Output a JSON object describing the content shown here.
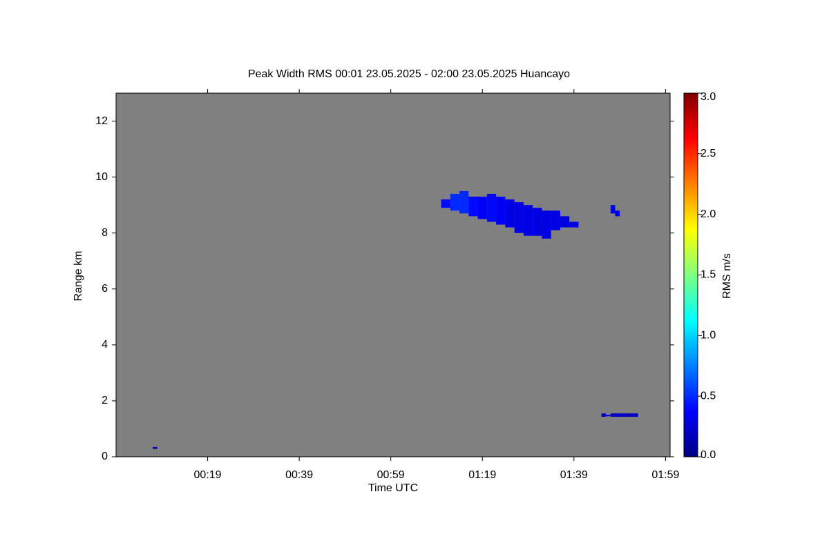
{
  "chart_data": {
    "type": "heatmap",
    "title": "Peak Width RMS   00:01 23.05.2025 - 02:00 23.05.2025 Huancayo",
    "xlabel": "Time UTC",
    "ylabel": "Range km",
    "colorbar_label": "RMS m/s",
    "xlim": [
      -1,
      120
    ],
    "xticks": [
      {
        "value": 19,
        "label": "00:19"
      },
      {
        "value": 39,
        "label": "00:39"
      },
      {
        "value": 59,
        "label": "00:59"
      },
      {
        "value": 79,
        "label": "01:19"
      },
      {
        "value": 99,
        "label": "01:39"
      },
      {
        "value": 119,
        "label": "01:59"
      }
    ],
    "ylim": [
      0,
      13
    ],
    "yticks": [
      0,
      2,
      4,
      6,
      8,
      10,
      12
    ],
    "clim": [
      0,
      3
    ],
    "cticks": [
      {
        "value": 0,
        "label": "0.0"
      },
      {
        "value": 0.5,
        "label": "0.5"
      },
      {
        "value": 1,
        "label": "1.0"
      },
      {
        "value": 1.5,
        "label": "1.5"
      },
      {
        "value": 2,
        "label": "2.0"
      },
      {
        "value": 2.5,
        "label": "2.5"
      },
      {
        "value": 3,
        "label": "3.0"
      }
    ],
    "background": "#808080",
    "echoes": [
      {
        "x": [
          70,
          72,
          74,
          76,
          78,
          80,
          82,
          84,
          86,
          88,
          90,
          92,
          94,
          96,
          98
        ],
        "bottom": [
          8.9,
          8.8,
          8.7,
          8.6,
          8.5,
          8.4,
          8.3,
          8.2,
          8.0,
          7.9,
          7.9,
          7.8,
          8.1,
          8.2,
          8.2
        ],
        "top": [
          9.2,
          9.4,
          9.5,
          9.3,
          9.3,
          9.4,
          9.3,
          9.2,
          9.1,
          9.0,
          8.9,
          8.8,
          8.8,
          8.6,
          8.4
        ],
        "values": [
          0.4,
          0.5,
          0.5,
          0.4,
          0.35,
          0.4,
          0.35,
          0.3,
          0.3,
          0.3,
          0.3,
          0.3,
          0.3,
          0.3,
          0.3
        ]
      },
      {
        "x": [
          107,
          108
        ],
        "bottom": [
          8.7,
          8.6
        ],
        "top": [
          9.0,
          8.8
        ],
        "values": [
          0.3,
          0.3
        ]
      },
      {
        "x": [
          105,
          106,
          107,
          108,
          109,
          110,
          111,
          112
        ],
        "bottom": [
          1.43,
          1.45,
          1.43,
          1.43,
          1.43,
          1.43,
          1.43,
          1.43
        ],
        "top": [
          1.55,
          1.5,
          1.55,
          1.55,
          1.55,
          1.55,
          1.55,
          1.55
        ],
        "values": [
          0.2,
          0.2,
          0.2,
          0.2,
          0.2,
          0.2,
          0.2,
          0.2
        ]
      },
      {
        "x": [
          7
        ],
        "bottom": [
          0.28
        ],
        "top": [
          0.35
        ],
        "values": [
          0.2
        ]
      }
    ]
  }
}
